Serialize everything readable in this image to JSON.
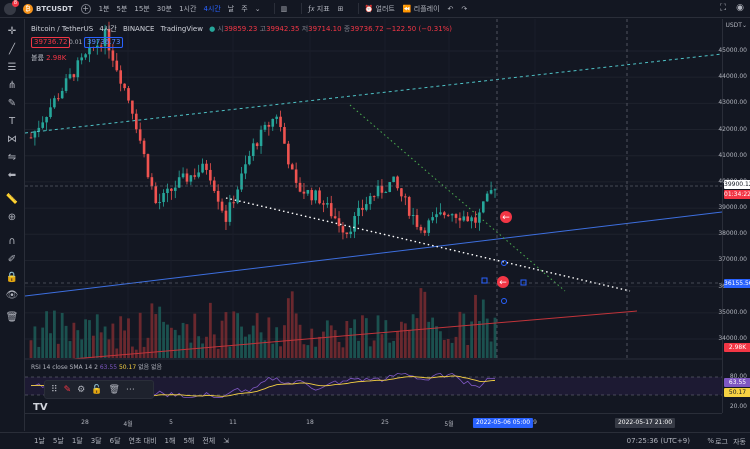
{
  "topbar": {
    "badge": "8",
    "symbol": "BTCUSDT",
    "timeframes": [
      "1분",
      "5분",
      "15분",
      "30분",
      "1시간",
      "4시간",
      "날",
      "주"
    ],
    "active_timeframe": "4시간",
    "tools": [
      "지표",
      "얼러트",
      "리플레이"
    ]
  },
  "legend": {
    "title": "Bitcoin / TetherUS",
    "interval": "4시간",
    "exchange": "BINANCE",
    "source": "TradingView",
    "o_label": "시",
    "o": "39859.23",
    "h_label": "고",
    "h": "39942.35",
    "l_label": "저",
    "l": "39714.10",
    "c_label": "종",
    "c": "39736.72",
    "change": "−122.50 (−0.31%)",
    "bid": "39736.72",
    "spread": "0.01",
    "ask": "39736.73"
  },
  "volume": {
    "label": "볼륨",
    "value": "2.98K"
  },
  "rsi": {
    "label": "RSI 14 close SMA 14 2",
    "value1": "63.55",
    "value2": "50.17",
    "suffix": "없음 없음"
  },
  "yaxis": {
    "currency": "USDT",
    "ticks": [
      "45000.00",
      "44000.00",
      "43000.00",
      "42000.00",
      "41000.00",
      "40000.00",
      "39000.00",
      "38000.00",
      "37000.00",
      "36000.00",
      "35000.00",
      "34000.00"
    ],
    "current_price": "39900.12",
    "countdown": "01:34:22",
    "cursor_price": "36155.56",
    "volume_tag": "2.98K",
    "rsi_ticks": [
      "80.00",
      "40.00",
      "20.00"
    ],
    "rsi_tag1": "63.55",
    "rsi_tag2": "50.17"
  },
  "xaxis": {
    "ticks": [
      "28",
      "4월",
      "5",
      "11",
      "18",
      "25",
      "5월",
      "9"
    ],
    "cursor_date": "2022-05-06  05:00",
    "cursor_date2": "2022-05-17  21:00"
  },
  "bottombar": {
    "ranges": [
      "1날",
      "5날",
      "1달",
      "3달",
      "6달",
      "연초 대비",
      "1해",
      "5해",
      "전체"
    ],
    "clock": "07:25:36 (UTC+9)",
    "pct": "%",
    "log": "로그",
    "auto": "자동"
  },
  "colors": {
    "up": "#26a69a",
    "down": "#ef5350",
    "accent": "#2962ff",
    "bg": "#131722"
  },
  "chart_data": {
    "type": "candlestick",
    "price_range": [
      33700,
      45500
    ],
    "close_path_approx": [
      [
        0,
        41700
      ],
      [
        0.05,
        43100
      ],
      [
        0.1,
        44400
      ],
      [
        0.16,
        45600
      ],
      [
        0.22,
        42700
      ],
      [
        0.27,
        39100
      ],
      [
        0.32,
        40000
      ],
      [
        0.38,
        40600
      ],
      [
        0.42,
        38600
      ],
      [
        0.48,
        41400
      ],
      [
        0.53,
        42600
      ],
      [
        0.57,
        39800
      ],
      [
        0.62,
        39400
      ],
      [
        0.68,
        38100
      ],
      [
        0.73,
        39400
      ],
      [
        0.78,
        40000
      ],
      [
        0.84,
        38200
      ],
      [
        0.9,
        38900
      ],
      [
        0.96,
        38500
      ],
      [
        1.0,
        39900
      ]
    ]
  }
}
